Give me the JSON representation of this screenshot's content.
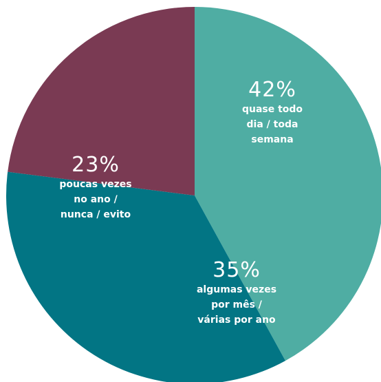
{
  "chart_data": {
    "type": "pie",
    "title": "",
    "slices": [
      {
        "value": 42,
        "pct_label": "42%",
        "label_lines": [
          "quase todo",
          "dia / toda",
          "semana"
        ],
        "color": "#4fada3"
      },
      {
        "value": 35,
        "pct_label": "35%",
        "label_lines": [
          "algumas vezes",
          "por mês /",
          "várias por ano"
        ],
        "color": "#027584"
      },
      {
        "value": 23,
        "pct_label": "23%",
        "label_lines": [
          "poucas vezes",
          "no ano /",
          "nunca / evito"
        ],
        "color": "#7a3a53"
      }
    ]
  }
}
